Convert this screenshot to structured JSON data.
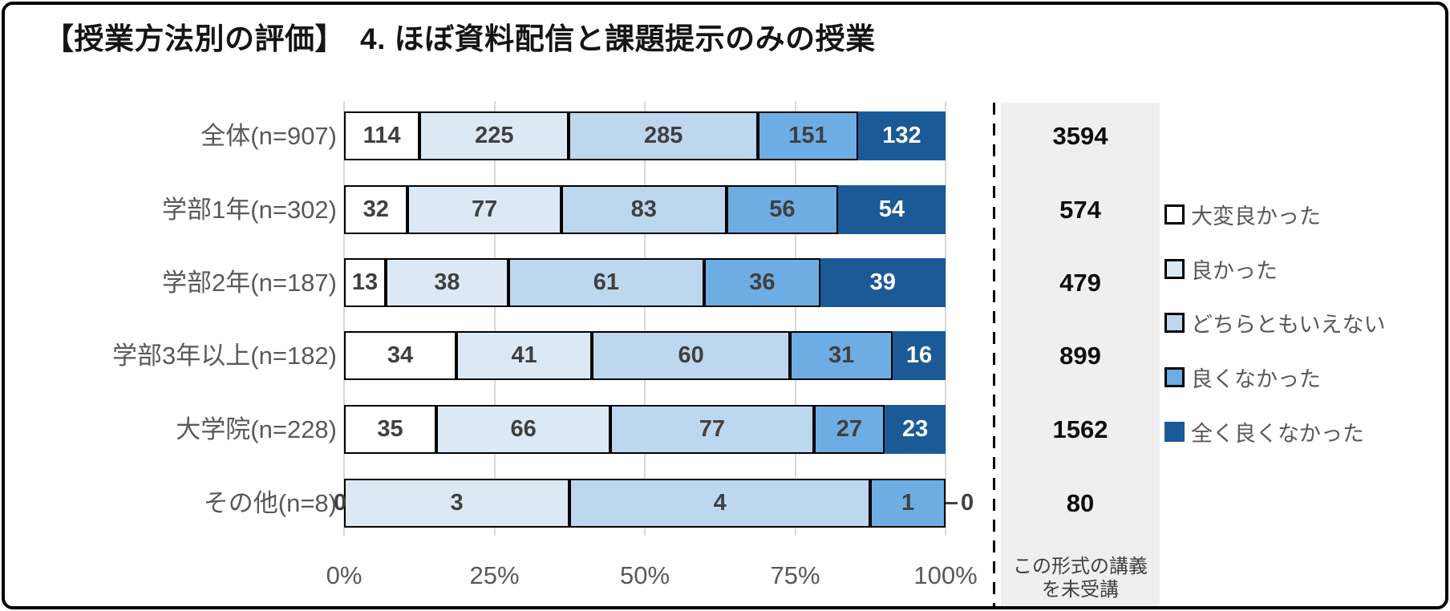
{
  "title": "【授業方法別の評価】　4. ほぼ資料配信と課題提示のみの授業",
  "chart_data": {
    "type": "bar",
    "orientation": "horizontal",
    "stacked": "100%",
    "grid": "vertical-on",
    "legend_position": "right",
    "categories": [
      "全体(n=907)",
      "学部1年(n=302)",
      "学部2年(n=187)",
      "学部3年以上(n=182)",
      "大学院(n=228)",
      "その他(n=8)"
    ],
    "series": [
      {
        "name": "大変良かった",
        "color": "#ffffff",
        "values": [
          114,
          32,
          13,
          34,
          35,
          0
        ]
      },
      {
        "name": "良かった",
        "color": "#dce9f5",
        "values": [
          225,
          77,
          38,
          41,
          66,
          3
        ]
      },
      {
        "name": "どちらともいえない",
        "color": "#bdd7ee",
        "values": [
          285,
          83,
          61,
          60,
          77,
          4
        ]
      },
      {
        "name": "良くなかった",
        "color": "#6dade3",
        "values": [
          151,
          56,
          36,
          31,
          27,
          1
        ]
      },
      {
        "name": "全く良くなかった",
        "color": "#1b5a96",
        "values": [
          132,
          54,
          39,
          16,
          23,
          0
        ]
      }
    ],
    "x_axis": {
      "ticks": [
        "0%",
        "25%",
        "50%",
        "75%",
        "100%"
      ],
      "range": [
        0,
        100
      ]
    },
    "not_attended_column": {
      "caption_line1": "この形式の講義",
      "caption_line2": "を未受講",
      "values": [
        3594,
        574,
        479,
        899,
        1562,
        80
      ]
    }
  },
  "colors": {
    "gridline": "#d9d9d9",
    "label_text": "#595959",
    "value_text": "#404040",
    "value_text_on_dark": "#ffffff",
    "na_box_bg": "#efefef",
    "segment_border": "#000000",
    "frame_border": "#000000"
  }
}
